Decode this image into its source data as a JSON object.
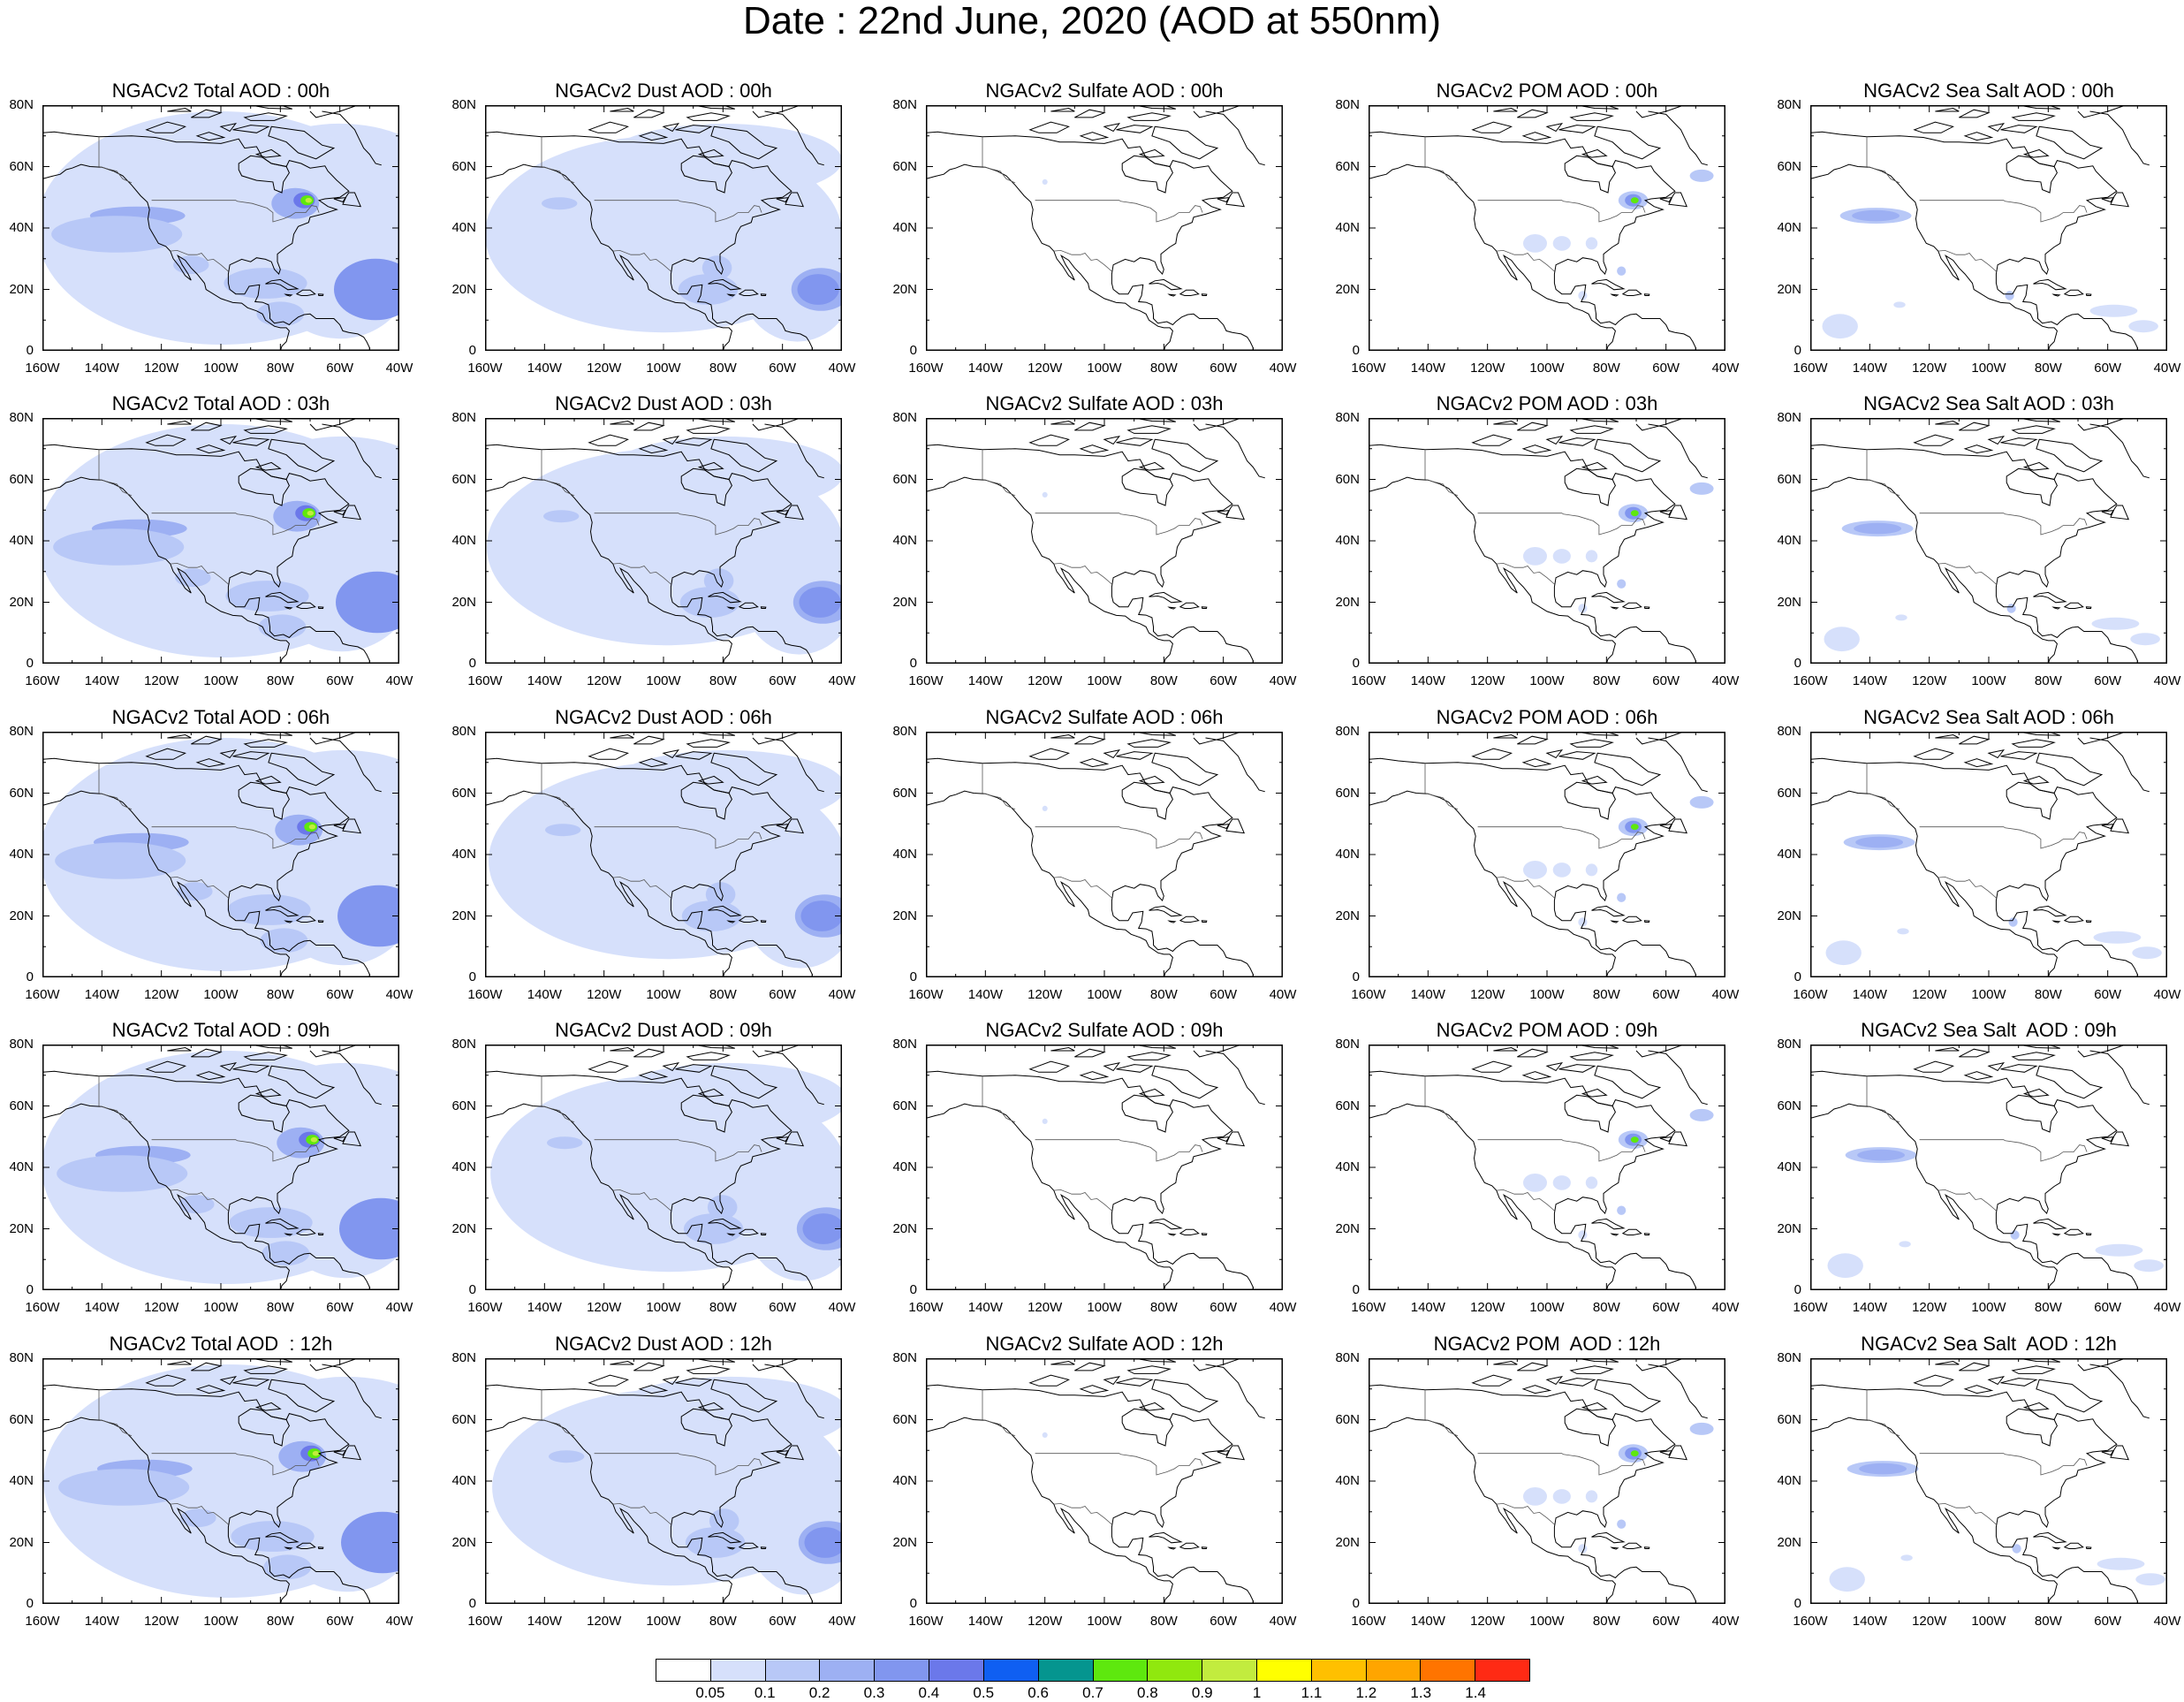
{
  "page": {
    "title": "Date : 22nd June, 2020 (AOD at 550nm)"
  },
  "axes": {
    "lat_labels": [
      "80N",
      "60N",
      "40N",
      "20N",
      "0"
    ],
    "lon_labels": [
      "160W",
      "140W",
      "120W",
      "100W",
      "80W",
      "60W",
      "40W"
    ]
  },
  "species": [
    "total",
    "dust",
    "sulfate",
    "pom",
    "seasalt"
  ],
  "panels": [
    [
      "NGACv2 Total AOD : 00h",
      "NGACv2 Dust AOD : 00h",
      "NGACv2 Sulfate AOD : 00h",
      "NGACv2 POM AOD : 00h",
      "NGACv2 Sea Salt AOD : 00h"
    ],
    [
      "NGACv2 Total AOD : 03h",
      "NGACv2 Dust AOD : 03h",
      "NGACv2 Sulfate AOD : 03h",
      "NGACv2 POM AOD : 03h",
      "NGACv2 Sea Salt AOD : 03h"
    ],
    [
      "NGACv2 Total AOD : 06h",
      "NGACv2 Dust AOD : 06h",
      "NGACv2 Sulfate AOD : 06h",
      "NGACv2 POM AOD : 06h",
      "NGACv2 Sea Salt AOD : 06h"
    ],
    [
      "NGACv2 Total AOD : 09h",
      "NGACv2 Dust AOD : 09h",
      "NGACv2 Sulfate AOD : 09h",
      "NGACv2 POM AOD : 09h",
      "NGACv2 Sea Salt  AOD : 09h"
    ],
    [
      "NGACv2 Total AOD  : 12h",
      "NGACv2 Dust AOD : 12h",
      "NGACv2 Sulfate AOD : 12h",
      "NGACv2 POM  AOD : 12h",
      "NGACv2 Sea Salt  AOD : 12h"
    ]
  ],
  "colorbar": {
    "colors": [
      "#ffffff",
      "#d6e0fb",
      "#b8c8f7",
      "#9db0f3",
      "#8196ef",
      "#6b78ea",
      "#0f5ff2",
      "#05958f",
      "#5ee80e",
      "#90e80e",
      "#c2ec3e",
      "#ffff00",
      "#ffc000",
      "#ffa500",
      "#ff7400",
      "#ff2a14"
    ],
    "labels": [
      "0.05",
      "0.1",
      "0.2",
      "0.3",
      "0.4",
      "0.5",
      "0.6",
      "0.7",
      "0.8",
      "0.9",
      "1",
      "1.1",
      "1.2",
      "1.3",
      "1.4"
    ]
  }
}
